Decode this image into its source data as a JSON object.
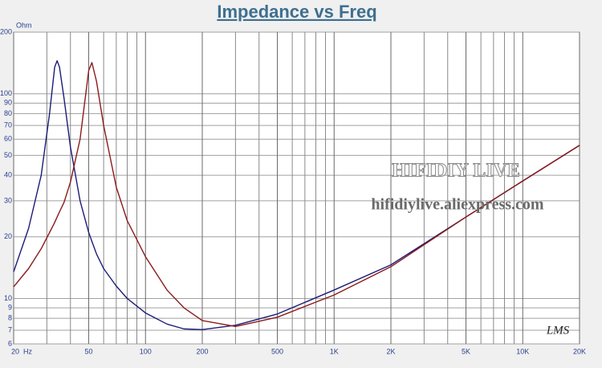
{
  "chart_data": {
    "type": "line",
    "title": "Impedance vs Freq",
    "ylabel": "Ohm",
    "x": [
      20,
      24,
      28,
      31,
      33,
      34,
      35,
      37,
      40,
      45,
      50,
      52,
      55,
      60,
      70,
      80,
      100,
      130,
      160,
      200,
      300,
      500,
      1000,
      2000,
      5000,
      10000,
      20000
    ],
    "series": [
      {
        "color": "#1c1c78",
        "values": [
          13.5,
          22,
          40,
          80,
          135,
          145,
          135,
          95,
          55,
          30,
          21,
          19,
          16.5,
          14,
          11.5,
          10,
          8.5,
          7.5,
          7.1,
          7.05,
          7.4,
          8.4,
          11,
          14.6,
          25,
          37.5,
          56
        ]
      },
      {
        "color": "#8b1a1a",
        "values": [
          11.4,
          14,
          17.5,
          21,
          23.5,
          25,
          26.5,
          29.5,
          37,
          60,
          130,
          142,
          115,
          70,
          35,
          24,
          16,
          11,
          9,
          7.8,
          7.3,
          8.1,
          10.4,
          14.3,
          25,
          37.5,
          56
        ]
      }
    ],
    "xscale": "log",
    "yscale": "log",
    "xlim": [
      20,
      20000
    ],
    "ylim": [
      6,
      200
    ],
    "xticks": [
      {
        "value": 20,
        "label": "20  Hz"
      },
      50,
      100,
      200,
      500,
      {
        "value": 1000,
        "label": "1K"
      },
      {
        "value": 2000,
        "label": "2K"
      },
      {
        "value": 5000,
        "label": "5K"
      },
      {
        "value": 10000,
        "label": "10K"
      },
      {
        "value": 20000,
        "label": "20K"
      }
    ],
    "xminor_ticks": [
      30,
      40,
      60,
      70,
      80,
      90,
      300,
      400,
      600,
      700,
      800,
      900,
      3000,
      4000,
      6000,
      7000,
      8000,
      9000
    ],
    "yticks": [
      200,
      100,
      90,
      80,
      70,
      60,
      50,
      40,
      30,
      20,
      10,
      9,
      8,
      7,
      6
    ],
    "grid": true,
    "watermarks": [
      "HIFIDIY LIVE",
      "hifidiylive.aliexpress.com",
      "LMS"
    ]
  }
}
